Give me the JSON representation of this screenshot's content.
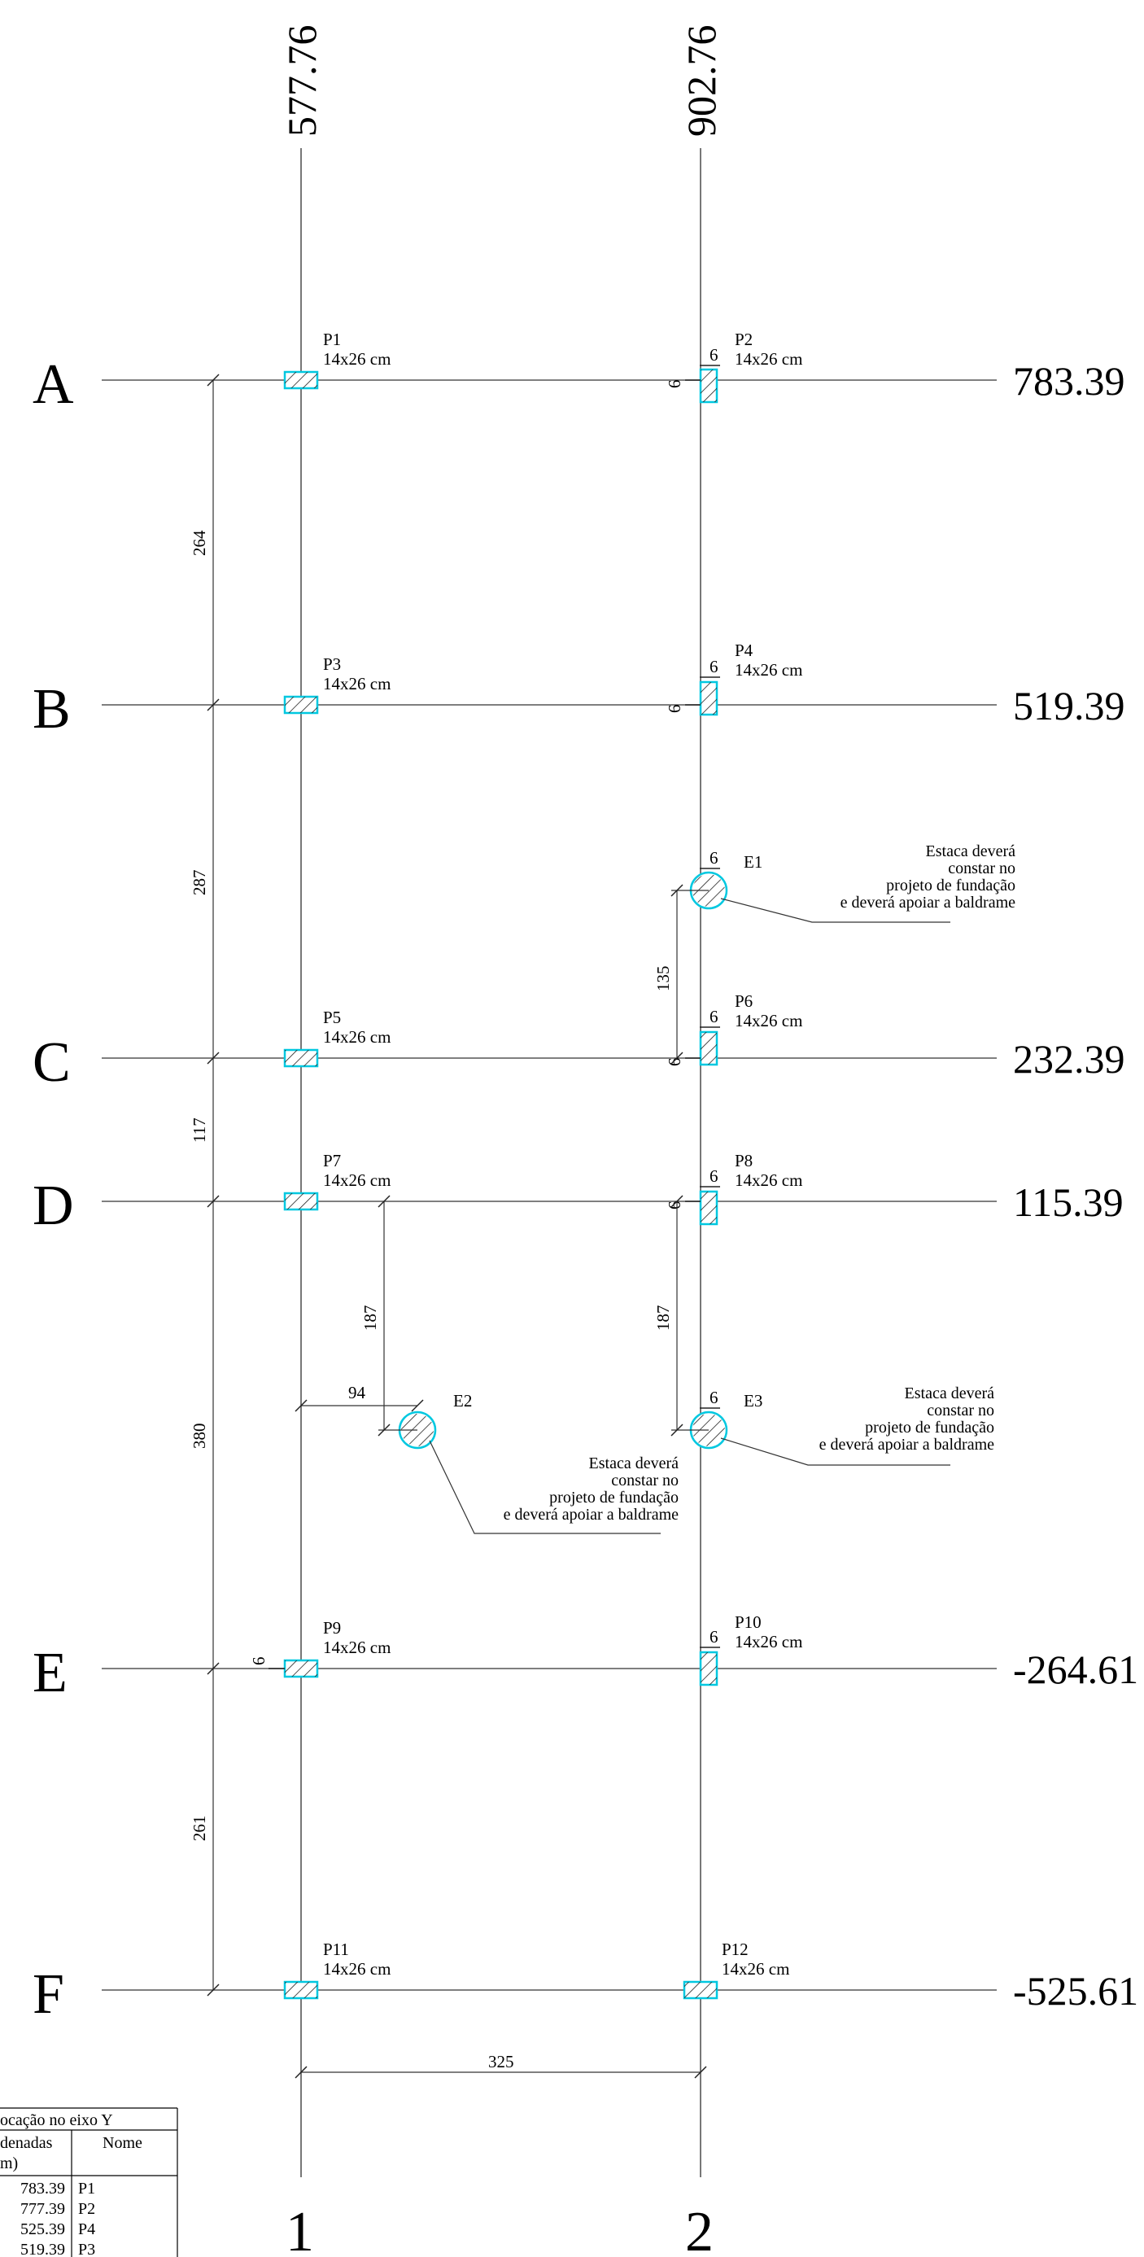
{
  "columns_axes": [
    {
      "label": "1",
      "coordinate": "577.76"
    },
    {
      "label": "2",
      "coordinate": "902.76"
    }
  ],
  "row_axes": [
    {
      "label": "A",
      "coordinate": "783.39"
    },
    {
      "label": "B",
      "coordinate": "519.39"
    },
    {
      "label": "C",
      "coordinate": "232.39"
    },
    {
      "label": "D",
      "coordinate": "115.39"
    },
    {
      "label": "E",
      "coordinate": "-264.61"
    },
    {
      "label": "F",
      "coordinate": "-525.61"
    }
  ],
  "pillars": [
    {
      "name": "P1",
      "size": "14x26 cm"
    },
    {
      "name": "P2",
      "size": "14x26 cm"
    },
    {
      "name": "P3",
      "size": "14x26 cm"
    },
    {
      "name": "P4",
      "size": "14x26 cm"
    },
    {
      "name": "P5",
      "size": "14x26 cm"
    },
    {
      "name": "P6",
      "size": "14x26 cm"
    },
    {
      "name": "P7",
      "size": "14x26 cm"
    },
    {
      "name": "P8",
      "size": "14x26 cm"
    },
    {
      "name": "P9",
      "size": "14x26 cm"
    },
    {
      "name": "P10",
      "size": "14x26 cm"
    },
    {
      "name": "P11",
      "size": "14x26 cm"
    },
    {
      "name": "P12",
      "size": "14x26 cm"
    }
  ],
  "piles": [
    {
      "name": "E1"
    },
    {
      "name": "E2"
    },
    {
      "name": "E3"
    }
  ],
  "pile_note": [
    "Estaca deverá",
    "constar no",
    "projeto de fundação",
    "e deverá apoiar a baldrame"
  ],
  "dimensions": {
    "ab": "264",
    "bc": "287",
    "cd": "117",
    "de": "380",
    "ef": "261",
    "col_spacing": "325",
    "e1_to_c": "135",
    "d_to_e2": "187",
    "d_to_e3": "187",
    "axis1_to_e2": "94",
    "offset": "6"
  },
  "table": {
    "title": "ocação no eixo Y",
    "header_coord": "denadas",
    "header_coord2": "m)",
    "header_name": "Nome",
    "rows": [
      {
        "coord": "783.39",
        "name": "P1"
      },
      {
        "coord": "777.39",
        "name": "P2"
      },
      {
        "coord": "525.39",
        "name": "P4"
      },
      {
        "coord": "519.39",
        "name": "P3"
      }
    ]
  }
}
